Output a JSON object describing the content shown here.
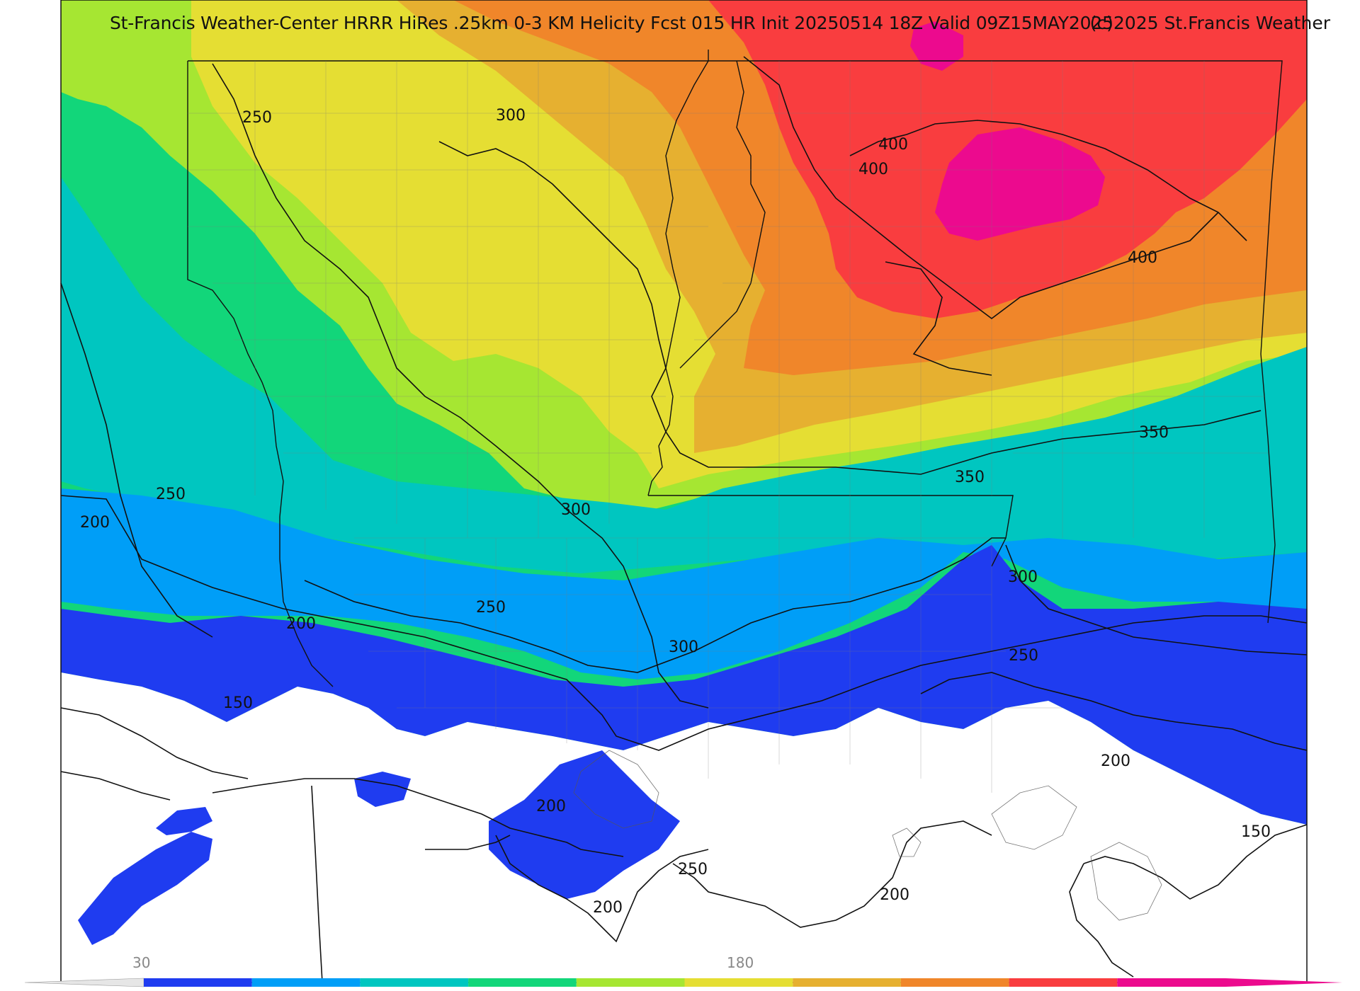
{
  "title": "St-Francis Weather-Center HRRR HiRes .25km 0-3 KM Helicity Fcst 015 HR Init 20250514 18Z  Valid 09Z15MAY2025",
  "credit": "(c)2025 St.Francis Weather",
  "colors": {
    "c150": "#1f3cf0",
    "c200": "#009ef7",
    "c250": "#00c6c0",
    "c300": "#12d67a",
    "c320": "#a6e632",
    "c350": "#e5de33",
    "c370": "#e6b030",
    "c400": "#f0862a",
    "c450": "#f93d3f",
    "c500": "#ec0a8e",
    "below": "#ffffff",
    "contour": "#111111",
    "county": "#7a7a7a"
  },
  "contour_labels": [
    {
      "id": "cl-250-nw",
      "text": "250"
    },
    {
      "id": "cl-300-n",
      "text": "300"
    },
    {
      "id": "cl-400-a",
      "text": "400"
    },
    {
      "id": "cl-400-b",
      "text": "400"
    },
    {
      "id": "cl-400-e",
      "text": "400"
    },
    {
      "id": "cl-350-e",
      "text": "350"
    },
    {
      "id": "cl-350-c",
      "text": "350"
    },
    {
      "id": "cl-250-w",
      "text": "250"
    },
    {
      "id": "cl-200-w",
      "text": "200"
    },
    {
      "id": "cl-300-c",
      "text": "300"
    },
    {
      "id": "cl-300-se",
      "text": "300"
    },
    {
      "id": "cl-200-cw",
      "text": "200"
    },
    {
      "id": "cl-250-c",
      "text": "250"
    },
    {
      "id": "cl-300-s",
      "text": "300"
    },
    {
      "id": "cl-250-se",
      "text": "250"
    },
    {
      "id": "cl-150-w",
      "text": "150"
    },
    {
      "id": "cl-200-e",
      "text": "200"
    },
    {
      "id": "cl-200-s",
      "text": "200"
    },
    {
      "id": "cl-250-s",
      "text": "250"
    },
    {
      "id": "cl-200-ss",
      "text": "200"
    },
    {
      "id": "cl-200-sc",
      "text": "200"
    },
    {
      "id": "cl-150-e",
      "text": "150"
    }
  ],
  "colorbar": {
    "labels": [
      "30",
      "180"
    ],
    "segments": [
      "#1f3cf0",
      "#009ef7",
      "#00c6c0",
      "#12d67a",
      "#a6e632",
      "#e5de33",
      "#e6b030",
      "#f0862a",
      "#f93d3f",
      "#ec0a8e"
    ]
  }
}
